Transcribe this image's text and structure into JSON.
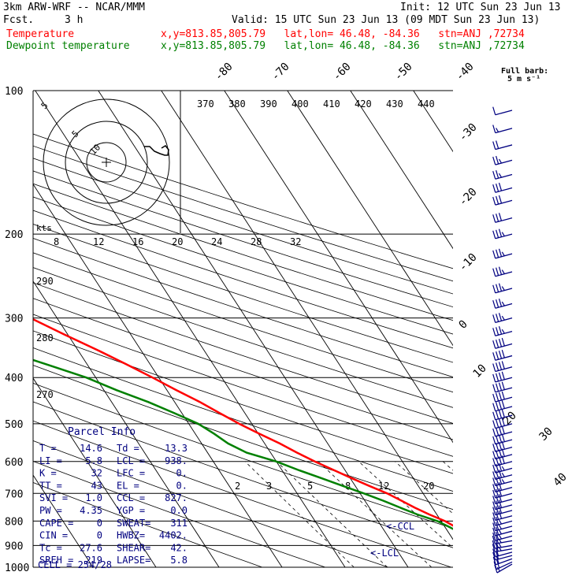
{
  "header": {
    "title": "3km ARW-WRF -- NCAR/MMM",
    "init": "Init: 12 UTC Sun 23 Jun 13",
    "fcst_label": "Fcst.",
    "fcst_value": "3 h",
    "valid": "Valid: 15 UTC Sun 23 Jun 13 (09 MDT Sun 23 Jun 13)"
  },
  "legend": [
    {
      "name": "Temperature",
      "info": "x,y=813.85,805.79   lat,lon= 46.48, -84.36   stn=ANJ ,72734",
      "color": "#ff0000"
    },
    {
      "name": "Dewpoint temperature",
      "info": "x,y=813.85,805.79   lat,lon= 46.48, -84.36   stn=ANJ ,72734",
      "color": "#008000"
    }
  ],
  "colors": {
    "temperature": "#ff0000",
    "dewpoint": "#008000",
    "parcel": "#000080",
    "grid": "#000000"
  },
  "barb_legend": {
    "title": "Full barb:",
    "value": "5 m s⁻¹"
  },
  "hodograph": {
    "kts_label": "kts",
    "ring_labels": [
      "5",
      "5",
      "10"
    ]
  },
  "parcel": {
    "title": "Parcel Info",
    "rows": [
      [
        "T  =",
        "14.6",
        "Td =",
        "13.3"
      ],
      [
        "LI =",
        "5.8",
        "LCL =",
        "938."
      ],
      [
        "K  =",
        "32",
        "LFC =",
        "0."
      ],
      [
        "TT =",
        "43",
        "EL  =",
        "0."
      ],
      [
        "SVI =",
        "1.0",
        "CCL =",
        "827."
      ],
      [
        "PW =",
        "4.35",
        "YGP =",
        "0.0"
      ],
      [
        "CAPE =",
        "0",
        "SWEAT=",
        "311"
      ],
      [
        "CIN =",
        "0",
        "HWBZ=",
        "4402."
      ],
      [
        "Tc =",
        "27.6",
        "SHEAR=",
        "42."
      ],
      [
        "SREH =",
        "219",
        "LAPSE=",
        "5.8"
      ]
    ],
    "cell": "CELL = 254/28",
    "ccl_marker": "<-CCL",
    "lcl_marker": "<-LCL"
  },
  "chart_data": {
    "type": "line",
    "y_axis": "pressure (hPa, log scale)",
    "ylim": [
      1000,
      100
    ],
    "pressure_ticks": [
      100,
      200,
      300,
      400,
      500,
      600,
      700,
      800,
      900,
      1000
    ],
    "isotherm_labels": [
      "-80",
      "-70",
      "-60",
      "-50",
      "-40",
      "-30",
      "-20",
      "-10",
      "0",
      "10",
      "20",
      "30",
      "40"
    ],
    "theta_labels": [
      "370",
      "380",
      "390",
      "400",
      "410",
      "420",
      "430",
      "440"
    ],
    "theta_left_labels": [
      "290",
      "280",
      "270"
    ],
    "speed_labels": [
      "8",
      "12",
      "16",
      "20",
      "24",
      "28",
      "32"
    ],
    "mixing_ratio_labels": [
      "2",
      "3",
      "5",
      "8",
      "12",
      "20"
    ],
    "series": [
      {
        "name": "Temperature",
        "color": "#ff0000",
        "points": [
          [
            1000,
            13.5
          ],
          [
            990,
            14.6
          ],
          [
            975,
            15.5
          ],
          [
            950,
            15.2
          ],
          [
            925,
            15.1
          ],
          [
            900,
            15.4
          ],
          [
            875,
            14.6
          ],
          [
            850,
            13.2
          ],
          [
            825,
            11.8
          ],
          [
            800,
            10.6
          ],
          [
            775,
            8.8
          ],
          [
            750,
            7.2
          ],
          [
            725,
            5.8
          ],
          [
            700,
            4.3
          ],
          [
            675,
            2.2
          ],
          [
            650,
            0.2
          ],
          [
            625,
            -1.8
          ],
          [
            600,
            -3.9
          ],
          [
            575,
            -5.8
          ],
          [
            550,
            -7.6
          ],
          [
            525,
            -9.8
          ],
          [
            500,
            -12.0
          ],
          [
            475,
            -14.0
          ],
          [
            450,
            -16.0
          ],
          [
            425,
            -18.5
          ],
          [
            400,
            -21.0
          ],
          [
            375,
            -23.8
          ],
          [
            350,
            -26.9
          ],
          [
            325,
            -30.5
          ],
          [
            300,
            -34.2
          ],
          [
            275,
            -38.9
          ],
          [
            250,
            -43.5
          ],
          [
            225,
            -48.5
          ],
          [
            200,
            -53.5
          ],
          [
            190,
            -56.0
          ],
          [
            180,
            -58.0
          ],
          [
            175,
            -59.2
          ],
          [
            170,
            -61.0
          ],
          [
            165,
            -63.0
          ],
          [
            160,
            -65.5
          ],
          [
            155,
            -67.5
          ],
          [
            150,
            -68.0
          ],
          [
            145,
            -67.8
          ],
          [
            140,
            -68.0
          ],
          [
            130,
            -68.5
          ],
          [
            120,
            -71.0
          ],
          [
            110,
            -73.0
          ],
          [
            100,
            -76.0
          ]
        ]
      },
      {
        "name": "Dewpoint temperature",
        "color": "#008000",
        "points": [
          [
            1000,
            9.5
          ],
          [
            990,
            12.0
          ],
          [
            975,
            13.0
          ],
          [
            950,
            13.2
          ],
          [
            925,
            13.5
          ],
          [
            900,
            13.4
          ],
          [
            875,
            12.8
          ],
          [
            850,
            12.0
          ],
          [
            825,
            10.8
          ],
          [
            800,
            9.4
          ],
          [
            775,
            6.9
          ],
          [
            750,
            4.9
          ],
          [
            725,
            2.9
          ],
          [
            700,
            0.6
          ],
          [
            675,
            -2.0
          ],
          [
            650,
            -4.6
          ],
          [
            625,
            -7.4
          ],
          [
            600,
            -10.0
          ],
          [
            575,
            -13.8
          ],
          [
            550,
            -15.8
          ],
          [
            525,
            -17.0
          ],
          [
            500,
            -18.5
          ],
          [
            475,
            -21.2
          ],
          [
            450,
            -24.2
          ],
          [
            425,
            -28.0
          ],
          [
            400,
            -31.5
          ],
          [
            375,
            -36.5
          ],
          [
            350,
            -42.0
          ],
          [
            325,
            -48.5
          ],
          [
            300,
            -53.0
          ],
          [
            275,
            -58.0
          ],
          [
            250,
            -62.0
          ],
          [
            225,
            -68.0
          ],
          [
            200,
            -74.5
          ],
          [
            180,
            -79.0
          ],
          [
            160,
            -83.0
          ],
          [
            140,
            -84.0
          ],
          [
            120,
            -85.0
          ],
          [
            100,
            -87.0
          ]
        ]
      }
    ],
    "wind_profile": [
      {
        "p": 985,
        "speed": 18,
        "dir": 240
      },
      {
        "p": 975,
        "speed": 20,
        "dir": 245
      },
      {
        "p": 960,
        "speed": 22,
        "dir": 250
      },
      {
        "p": 945,
        "speed": 23,
        "dir": 255
      },
      {
        "p": 930,
        "speed": 24,
        "dir": 255
      },
      {
        "p": 915,
        "speed": 25,
        "dir": 260
      },
      {
        "p": 900,
        "speed": 25,
        "dir": 260
      },
      {
        "p": 880,
        "speed": 26,
        "dir": 260
      },
      {
        "p": 860,
        "speed": 26,
        "dir": 255
      },
      {
        "p": 840,
        "speed": 27,
        "dir": 255
      },
      {
        "p": 820,
        "speed": 28,
        "dir": 255
      },
      {
        "p": 800,
        "speed": 28,
        "dir": 255
      },
      {
        "p": 780,
        "speed": 30,
        "dir": 255
      },
      {
        "p": 760,
        "speed": 30,
        "dir": 255
      },
      {
        "p": 740,
        "speed": 31,
        "dir": 255
      },
      {
        "p": 720,
        "speed": 32,
        "dir": 255
      },
      {
        "p": 700,
        "speed": 33,
        "dir": 255
      },
      {
        "p": 680,
        "speed": 34,
        "dir": 255
      },
      {
        "p": 660,
        "speed": 35,
        "dir": 255
      },
      {
        "p": 640,
        "speed": 36,
        "dir": 255
      },
      {
        "p": 620,
        "speed": 38,
        "dir": 255
      },
      {
        "p": 600,
        "speed": 40,
        "dir": 255
      },
      {
        "p": 580,
        "speed": 40,
        "dir": 255
      },
      {
        "p": 560,
        "speed": 40,
        "dir": 255
      },
      {
        "p": 540,
        "speed": 40,
        "dir": 255
      },
      {
        "p": 520,
        "speed": 40,
        "dir": 255
      },
      {
        "p": 500,
        "speed": 40,
        "dir": 255
      },
      {
        "p": 480,
        "speed": 40,
        "dir": 255
      },
      {
        "p": 460,
        "speed": 40,
        "dir": 255
      },
      {
        "p": 440,
        "speed": 40,
        "dir": 255
      },
      {
        "p": 420,
        "speed": 40,
        "dir": 255
      },
      {
        "p": 400,
        "speed": 40,
        "dir": 255
      },
      {
        "p": 380,
        "speed": 40,
        "dir": 255
      },
      {
        "p": 360,
        "speed": 40,
        "dir": 255
      },
      {
        "p": 340,
        "speed": 40,
        "dir": 255
      },
      {
        "p": 320,
        "speed": 35,
        "dir": 255
      },
      {
        "p": 300,
        "speed": 35,
        "dir": 255
      },
      {
        "p": 280,
        "speed": 35,
        "dir": 255
      },
      {
        "p": 260,
        "speed": 35,
        "dir": 255
      },
      {
        "p": 240,
        "speed": 35,
        "dir": 255
      },
      {
        "p": 220,
        "speed": 35,
        "dir": 255
      },
      {
        "p": 200,
        "speed": 35,
        "dir": 255
      },
      {
        "p": 185,
        "speed": 30,
        "dir": 255
      },
      {
        "p": 170,
        "speed": 30,
        "dir": 255
      },
      {
        "p": 160,
        "speed": 30,
        "dir": 255
      },
      {
        "p": 150,
        "speed": 25,
        "dir": 255
      },
      {
        "p": 140,
        "speed": 25,
        "dir": 255
      },
      {
        "p": 130,
        "speed": 20,
        "dir": 255
      },
      {
        "p": 120,
        "speed": 15,
        "dir": 255
      },
      {
        "p": 110,
        "speed": 10,
        "dir": 255
      }
    ],
    "grid": true,
    "legend_position": "top-left"
  }
}
